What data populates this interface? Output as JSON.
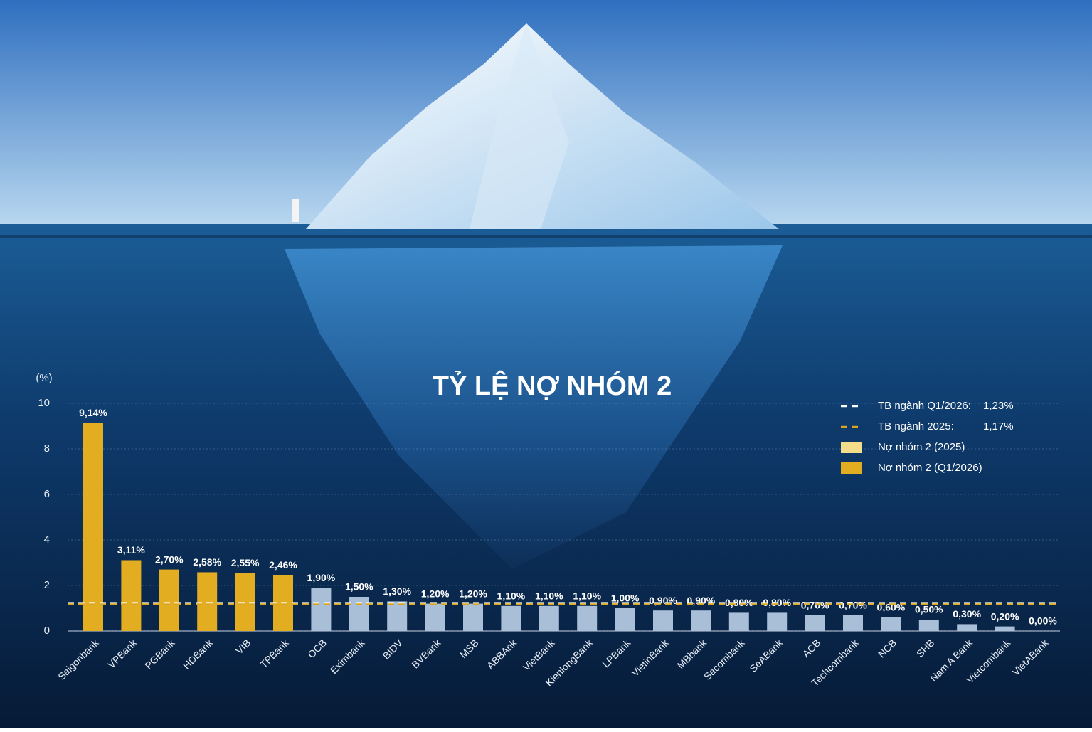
{
  "chart_data": {
    "type": "bar",
    "title": "TỶ LỆ NỢ NHÓM 2",
    "y_label": "(%)",
    "categories": [
      "Saigonbank",
      "VPBank",
      "PGBank",
      "HDBank",
      "VIB",
      "TPBank",
      "OCB",
      "Eximbank",
      "BIDV",
      "BVBank",
      "MSB",
      "ABBAnk",
      "VietBank",
      "KienlongBank",
      "LPBank",
      "VietinBank",
      "MBbank",
      "Sacombank",
      "SeABank",
      "ACB",
      "Techcombank",
      "NCB",
      "SHB",
      "Nam A Bank",
      "Vietcombank",
      "VietABank"
    ],
    "values": [
      9.14,
      3.11,
      2.7,
      2.58,
      2.55,
      2.46,
      1.9,
      1.5,
      1.3,
      1.2,
      1.2,
      1.1,
      1.1,
      1.1,
      1.0,
      0.9,
      0.9,
      0.8,
      0.8,
      0.7,
      0.7,
      0.6,
      0.5,
      0.3,
      0.2,
      0.0
    ],
    "value_labels": [
      "9,14%",
      "3,11%",
      "2,70%",
      "2,58%",
      "2,55%",
      "2,46%",
      "1,90%",
      "1,50%",
      "1,30%",
      "1,20%",
      "1,20%",
      "1,10%",
      "1,10%",
      "1,10%",
      "1,00%",
      "0,90%",
      "0,90%",
      "0,80%",
      "0,80%",
      "0,70%",
      "0,70%",
      "0,60%",
      "0,50%",
      "0,30%",
      "0,20%",
      "0,00%"
    ],
    "bar_colors": [
      "#e3ad22",
      "#e3ad22",
      "#e3ad22",
      "#e3ad22",
      "#e3ad22",
      "#e3ad22",
      "#a9bfd8",
      "#a9bfd8",
      "#a9bfd8",
      "#a9bfd8",
      "#a9bfd8",
      "#a9bfd8",
      "#a9bfd8",
      "#a9bfd8",
      "#a9bfd8",
      "#a9bfd8",
      "#a9bfd8",
      "#a9bfd8",
      "#a9bfd8",
      "#a9bfd8",
      "#a9bfd8",
      "#a9bfd8",
      "#a9bfd8",
      "#a9bfd8",
      "#a9bfd8",
      "#a9bfd8"
    ],
    "ylim": [
      0,
      10
    ],
    "yticks": [
      0,
      2,
      4,
      6,
      8,
      10
    ],
    "grid": true,
    "reference_lines": [
      {
        "name": "TB ngành Q1/2026:",
        "value": 1.23,
        "value_label": "1,23%",
        "color": "#ffffff"
      },
      {
        "name": "TB ngành 2025:",
        "value": 1.17,
        "value_label": "1,17%",
        "color": "#d9a521"
      }
    ],
    "legend": [
      {
        "name": "Nợ nhóm 2 (2025)",
        "color": "#f3dc8a"
      },
      {
        "name": "Nợ nhóm 2 (Q1/2026)",
        "color": "#e3ad22"
      }
    ]
  }
}
